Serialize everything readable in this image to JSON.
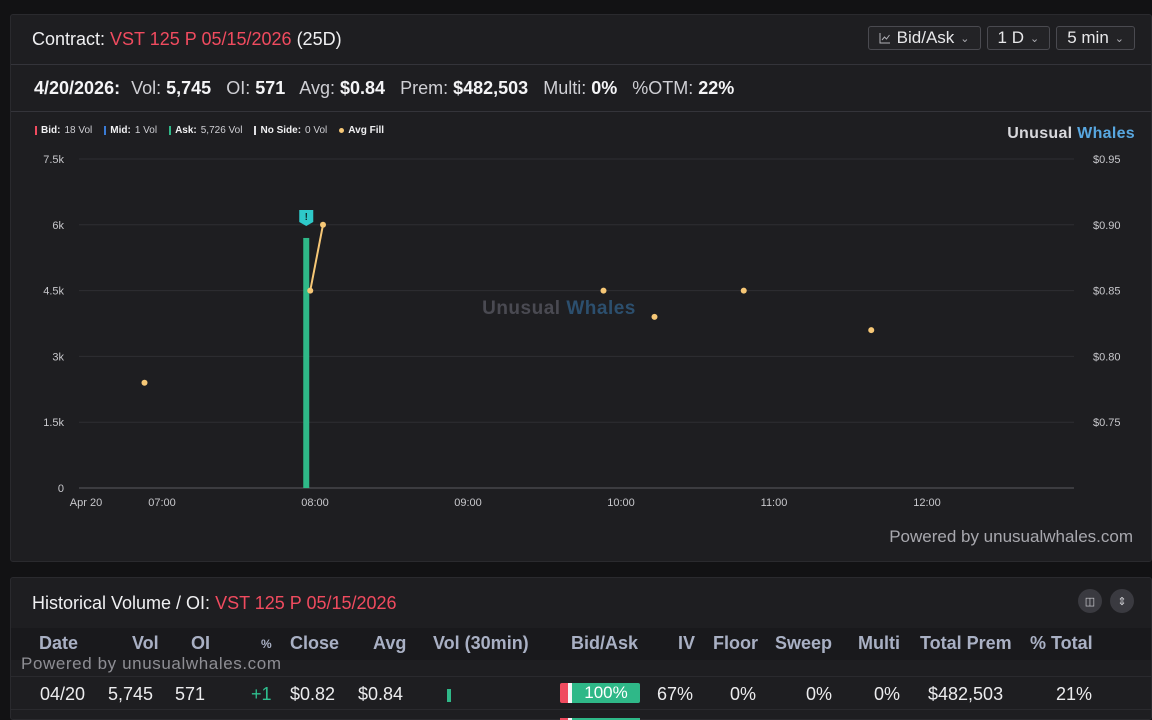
{
  "header": {
    "contract_label": "Contract:",
    "contract": "VST 125 P 05/15/2026",
    "dte": "(25D)",
    "controls": [
      {
        "label": "Bid/Ask",
        "icon": "line-chart-icon"
      },
      {
        "label": "1 D"
      },
      {
        "label": "5 min"
      }
    ]
  },
  "stats": {
    "date": "4/20/2026:",
    "vol_label": "Vol:",
    "vol": "5,745",
    "oi_label": "OI:",
    "oi": "571",
    "avg_label": "Avg:",
    "avg": "$0.84",
    "prem_label": "Prem:",
    "prem": "$482,503",
    "multi_label": "Multi:",
    "multi": "0%",
    "otm_label": "%OTM:",
    "otm": "22%"
  },
  "legend": [
    {
      "name": "Bid:",
      "value": "18 Vol",
      "color": "#f04b5f",
      "kind": "bar"
    },
    {
      "name": "Mid:",
      "value": "1 Vol",
      "color": "#3a7bd5",
      "kind": "bar"
    },
    {
      "name": "Ask:",
      "value": "5,726 Vol",
      "color": "#2fb888",
      "kind": "bar"
    },
    {
      "name": "No Side:",
      "value": "0 Vol",
      "color": "#e0e0e4",
      "kind": "bar"
    },
    {
      "name": "Avg Fill",
      "value": "",
      "color": "#f6c776",
      "kind": "dot"
    }
  ],
  "brand": {
    "part1": "Unusual ",
    "part2": "Whales"
  },
  "powered": "Powered by unusualwhales.com",
  "chart_data": {
    "type": "bar",
    "x_ticks": [
      "Apr 20",
      "07:00",
      "08:00",
      "09:00",
      "10:00",
      "11:00",
      "12:00"
    ],
    "y_left_ticks": [
      "0",
      "1.5k",
      "3k",
      "4.5k",
      "6k",
      "7.5k"
    ],
    "y_left_range": [
      0,
      7500
    ],
    "y_right_ticks": [
      "$0.75",
      "$0.80",
      "$0.85",
      "$0.90",
      "$0.95"
    ],
    "y_right_range": [
      0.7,
      0.95
    ],
    "volume_bars": [
      {
        "time": "07:55",
        "ask": 5700,
        "bid": 0,
        "mid": 0
      }
    ],
    "avg_fill": [
      {
        "time": "06:50",
        "price": 0.78
      },
      {
        "time": "07:55",
        "price": 0.85
      },
      {
        "time": "08:00",
        "price": 0.9
      },
      {
        "time": "09:50",
        "price": 0.85
      },
      {
        "time": "10:10",
        "price": 0.83
      },
      {
        "time": "10:45",
        "price": 0.85
      },
      {
        "time": "11:35",
        "price": 0.82
      }
    ],
    "marker": "!",
    "grid": true,
    "colors": {
      "ask": "#2fb888",
      "avg_fill": "#f6c776",
      "marker": "#2ec9c9"
    }
  },
  "history": {
    "title_label": "Historical Volume / OI:",
    "contract": "VST 125 P 05/15/2026",
    "columns": [
      "Date",
      "Vol",
      "OI",
      "%",
      "Close",
      "Avg",
      "Vol (30min)",
      "Bid/Ask",
      "IV",
      "Floor",
      "Sweep",
      "Multi",
      "Total Prem",
      "% Total"
    ],
    "rows": [
      {
        "date": "04/20",
        "vol": "5,745",
        "oi": "571",
        "oi_change": "+1",
        "close": "$0.82",
        "avg": "$0.84",
        "bid_ask": "100%",
        "iv": "67%",
        "floor": "0%",
        "sweep": "0%",
        "multi": "0%",
        "total_prem": "$482,503",
        "pct_total": "21%"
      }
    ]
  }
}
